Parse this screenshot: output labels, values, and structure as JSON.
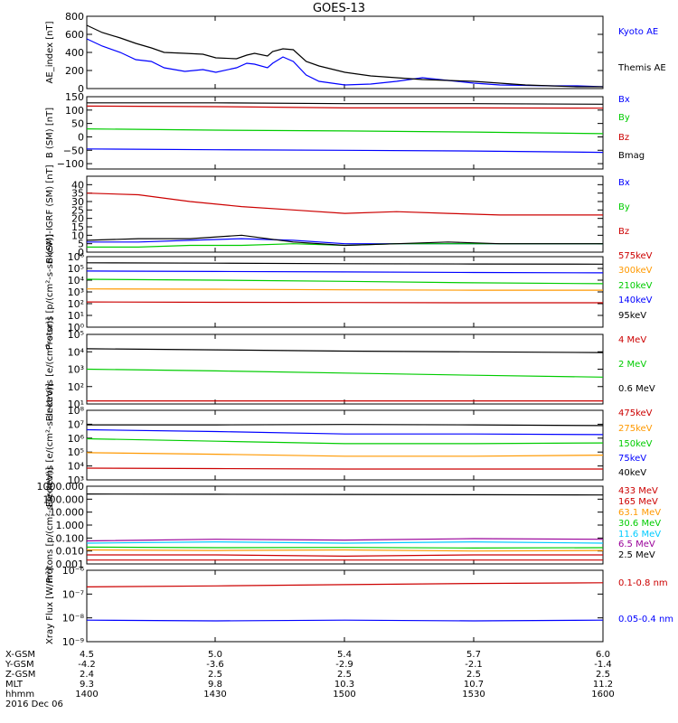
{
  "title": "GOES-13",
  "colors": {
    "blue": "#0000ff",
    "red": "#cc0000",
    "green": "#00cc00",
    "black": "#000000",
    "orange": "#ff9900",
    "cyan": "#00ccff",
    "purple": "#990099"
  },
  "footer": {
    "rows": [
      {
        "label": "X-GSM",
        "values": [
          "4.5",
          "5.0",
          "5.4",
          "5.7",
          "6.0"
        ]
      },
      {
        "label": "Y-GSM",
        "values": [
          "-4.2",
          "-3.6",
          "-2.9",
          "-2.1",
          "-1.4"
        ]
      },
      {
        "label": "Z-GSM",
        "values": [
          "2.4",
          "2.5",
          "2.5",
          "2.5",
          "2.5"
        ]
      },
      {
        "label": "MLT",
        "values": [
          "9.3",
          "9.8",
          "10.3",
          "10.7",
          "11.2"
        ]
      },
      {
        "label": "hhmm",
        "values": [
          "1400",
          "1430",
          "1500",
          "1530",
          "1600"
        ]
      }
    ],
    "date": "2016 Dec 06"
  },
  "chart_data": [
    {
      "type": "line",
      "ylabel": "AE_index [nT]",
      "scale": "linear",
      "ylim": [
        0,
        800
      ],
      "yticks": [
        "0",
        "200",
        "400",
        "600",
        "800"
      ],
      "xrange": [
        1400,
        1600
      ],
      "grid": false,
      "series": [
        {
          "name": "Kyoto AE",
          "color": "blue",
          "x": [
            1400,
            1406,
            1413,
            1419,
            1425,
            1430,
            1438,
            1445,
            1450,
            1458,
            1462,
            1465,
            1470,
            1472,
            1476,
            1480,
            1485,
            1490,
            1500,
            1510,
            1520,
            1530,
            1540,
            1550,
            1560,
            1570,
            1580,
            1590,
            1600
          ],
          "values": [
            550,
            470,
            400,
            320,
            300,
            230,
            190,
            210,
            180,
            230,
            280,
            270,
            230,
            280,
            350,
            300,
            150,
            80,
            40,
            50,
            80,
            120,
            90,
            60,
            40,
            35,
            30,
            30,
            20
          ]
        },
        {
          "name": "Themis AE",
          "color": "black",
          "x": [
            1400,
            1406,
            1413,
            1419,
            1425,
            1430,
            1438,
            1445,
            1450,
            1458,
            1462,
            1465,
            1470,
            1472,
            1476,
            1480,
            1485,
            1490,
            1500,
            1510,
            1520,
            1530,
            1540,
            1550,
            1560,
            1570,
            1580,
            1590,
            1600
          ],
          "values": [
            700,
            620,
            560,
            500,
            450,
            400,
            390,
            380,
            340,
            330,
            370,
            390,
            360,
            410,
            440,
            430,
            300,
            250,
            180,
            140,
            120,
            100,
            90,
            80,
            60,
            40,
            30,
            20,
            20
          ]
        }
      ]
    },
    {
      "type": "line",
      "ylabel": "B (SM) [nT]",
      "scale": "linear",
      "ylim": [
        -120,
        150
      ],
      "yticks": [
        "−100",
        "−50",
        "0",
        "50",
        "100",
        "150"
      ],
      "grid": false,
      "series": [
        {
          "name": "Bx",
          "color": "blue",
          "x": [
            1400,
            1450,
            1500,
            1550,
            1600
          ],
          "values": [
            -45,
            -48,
            -50,
            -53,
            -58
          ]
        },
        {
          "name": "By",
          "color": "green",
          "x": [
            1400,
            1450,
            1500,
            1550,
            1600
          ],
          "values": [
            30,
            25,
            22,
            18,
            12
          ]
        },
        {
          "name": "Bz",
          "color": "red",
          "x": [
            1400,
            1450,
            1500,
            1550,
            1600
          ],
          "values": [
            115,
            113,
            108,
            108,
            107
          ]
        },
        {
          "name": "Bmag",
          "color": "black",
          "x": [
            1400,
            1450,
            1500,
            1550,
            1600
          ],
          "values": [
            127,
            127,
            124,
            124,
            122
          ]
        }
      ]
    },
    {
      "type": "line",
      "ylabel": "B (SM)-IGRF (SM) [nT]",
      "scale": "linear",
      "ylim": [
        -5,
        40
      ],
      "yticks": [
        "0",
        "5",
        "10",
        "15",
        "20",
        "25",
        "30",
        "35",
        "40"
      ],
      "grid": false,
      "series": [
        {
          "name": "Bx",
          "color": "blue",
          "x": [
            1400,
            1420,
            1440,
            1460,
            1480,
            1500,
            1520,
            1540,
            1560,
            1580,
            1600
          ],
          "values": [
            1,
            1,
            2,
            3,
            2,
            0,
            0,
            0,
            0,
            0,
            0
          ]
        },
        {
          "name": "By",
          "color": "green",
          "x": [
            1400,
            1420,
            1440,
            1460,
            1480,
            1500,
            1520,
            1540,
            1560,
            1580,
            1600
          ],
          "values": [
            -2,
            -2,
            -1,
            -1,
            0,
            -1,
            0,
            0,
            0,
            0,
            0
          ]
        },
        {
          "name": "Bz",
          "color": "red",
          "x": [
            1400,
            1420,
            1440,
            1460,
            1480,
            1500,
            1520,
            1540,
            1560,
            1580,
            1600
          ],
          "values": [
            30,
            29,
            25,
            22,
            20,
            18,
            19,
            18,
            17,
            17,
            17
          ]
        },
        {
          "name": "",
          "color": "black",
          "x": [
            1400,
            1420,
            1440,
            1460,
            1480,
            1500,
            1520,
            1540,
            1560,
            1580,
            1600
          ],
          "values": [
            2,
            3,
            3,
            5,
            1,
            -1,
            0,
            1,
            0,
            0,
            0
          ]
        }
      ]
    },
    {
      "type": "line",
      "ylabel": "Protons [p/(cm²-s-sr-keV)]",
      "scale": "log",
      "ylim": [
        1,
        1000000
      ],
      "yticks": [
        "10⁰",
        "10¹",
        "10²",
        "10³",
        "10⁴",
        "10⁵",
        "10⁶"
      ],
      "grid": false,
      "series": [
        {
          "name": "575keV",
          "color": "red",
          "x": [
            1400,
            1450,
            1500,
            1550,
            1600
          ],
          "values": [
            140,
            130,
            125,
            120,
            120
          ]
        },
        {
          "name": "300keV",
          "color": "orange",
          "x": [
            1400,
            1450,
            1500,
            1550,
            1600
          ],
          "values": [
            1800,
            1700,
            1500,
            1400,
            1400
          ]
        },
        {
          "name": "210keV",
          "color": "green",
          "x": [
            1400,
            1450,
            1500,
            1550,
            1600
          ],
          "values": [
            12000,
            10000,
            8000,
            6000,
            5000
          ]
        },
        {
          "name": "140keV",
          "color": "blue",
          "x": [
            1400,
            1450,
            1500,
            1550,
            1600
          ],
          "values": [
            60000,
            55000,
            50000,
            45000,
            42000
          ]
        },
        {
          "name": "95keV",
          "color": "black",
          "x": [
            1400,
            1450,
            1500,
            1550,
            1600
          ],
          "values": [
            300000,
            280000,
            250000,
            240000,
            230000
          ]
        }
      ]
    },
    {
      "type": "line",
      "ylabel": "Electrons [e/(cm²-s-sr)]",
      "scale": "log",
      "ylim": [
        10,
        100000
      ],
      "yticks": [
        "10¹",
        "10²",
        "10³",
        "10⁴",
        "10⁵"
      ],
      "grid": false,
      "series": [
        {
          "name": "4 MeV",
          "color": "red",
          "x": [
            1400,
            1450,
            1500,
            1550,
            1600
          ],
          "values": [
            15,
            15,
            15,
            15,
            15
          ]
        },
        {
          "name": "2 MeV",
          "color": "green",
          "x": [
            1400,
            1450,
            1500,
            1550,
            1600
          ],
          "values": [
            1000,
            800,
            600,
            450,
            350
          ]
        },
        {
          "name": "0.6 MeV",
          "color": "black",
          "x": [
            1400,
            1450,
            1500,
            1550,
            1600
          ],
          "values": [
            15000,
            13000,
            11000,
            10000,
            9000
          ]
        }
      ]
    },
    {
      "type": "line",
      "ylabel": "Electrons [e/(cm²-s-sr-keV)]",
      "scale": "log",
      "ylim": [
        1000,
        100000000
      ],
      "yticks": [
        "10³",
        "10⁴",
        "10⁵",
        "10⁶",
        "10⁷",
        "10⁸"
      ],
      "grid": false,
      "series": [
        {
          "name": "475keV",
          "color": "red",
          "x": [
            1400,
            1450,
            1500,
            1550,
            1600
          ],
          "values": [
            7000,
            6500,
            6000,
            6000,
            6000
          ]
        },
        {
          "name": "275keV",
          "color": "orange",
          "x": [
            1400,
            1450,
            1500,
            1550,
            1600
          ],
          "values": [
            90000,
            70000,
            50000,
            50000,
            60000
          ]
        },
        {
          "name": "150keV",
          "color": "green",
          "x": [
            1400,
            1450,
            1500,
            1550,
            1600
          ],
          "values": [
            900000,
            600000,
            400000,
            400000,
            450000
          ]
        },
        {
          "name": "75keV",
          "color": "blue",
          "x": [
            1400,
            1450,
            1500,
            1550,
            1600
          ],
          "values": [
            4000000,
            3000000,
            2000000,
            2000000,
            1800000
          ]
        },
        {
          "name": "40keV",
          "color": "black",
          "x": [
            1400,
            1450,
            1500,
            1550,
            1600
          ],
          "values": [
            9000000,
            9000000,
            9500000,
            9000000,
            8000000
          ]
        }
      ]
    },
    {
      "type": "line",
      "ylabel": "Protons [p/(cm²-s-sr-keV)]",
      "scale": "log",
      "ylim": [
        0.001,
        1000
      ],
      "yticks": [
        "0.001",
        "0.010",
        "0.100",
        "1.000",
        "10.000",
        "100.000",
        "1000.000"
      ],
      "grid": false,
      "series": [
        {
          "name": "433 MeV",
          "color": "red",
          "x": [
            1400,
            1450,
            1500,
            1550,
            1600
          ],
          "values": [
            0.002,
            0.002,
            0.002,
            0.002,
            0.002
          ]
        },
        {
          "name": "165 MeV",
          "color": "red",
          "x": [
            1400,
            1450,
            1500,
            1550,
            1600
          ],
          "values": [
            0.005,
            0.005,
            0.004,
            0.005,
            0.005
          ]
        },
        {
          "name": "63.1 MeV",
          "color": "orange",
          "x": [
            1400,
            1450,
            1500,
            1550,
            1600
          ],
          "values": [
            0.012,
            0.011,
            0.012,
            0.01,
            0.011
          ]
        },
        {
          "name": "30.6 MeV",
          "color": "green",
          "x": [
            1400,
            1450,
            1500,
            1550,
            1600
          ],
          "values": [
            0.02,
            0.018,
            0.019,
            0.017,
            0.018
          ]
        },
        {
          "name": "11.6 MeV",
          "color": "cyan",
          "x": [
            1400,
            1450,
            1500,
            1550,
            1600
          ],
          "values": [
            0.04,
            0.05,
            0.04,
            0.05,
            0.04
          ]
        },
        {
          "name": "6.5 MeV",
          "color": "purple",
          "x": [
            1400,
            1450,
            1500,
            1550,
            1600
          ],
          "values": [
            0.06,
            0.08,
            0.07,
            0.09,
            0.08
          ]
        },
        {
          "name": "2.5 MeV",
          "color": "black",
          "x": [
            1400,
            1450,
            1500,
            1550,
            1600
          ],
          "values": [
            250,
            240,
            230,
            220,
            210
          ]
        }
      ]
    },
    {
      "type": "line",
      "ylabel": "Xray Flux [W/m²]",
      "scale": "log",
      "ylim": [
        1e-09,
        1e-06
      ],
      "yticks": [
        "10⁻⁹",
        "10⁻⁸",
        "10⁻⁷",
        "10⁻⁶"
      ],
      "grid": false,
      "series": [
        {
          "name": "0.1-0.8 nm",
          "color": "red",
          "x": [
            1400,
            1450,
            1500,
            1550,
            1600
          ],
          "values": [
            2e-07,
            2.2e-07,
            2.5e-07,
            2.8e-07,
            3e-07
          ]
        },
        {
          "name": "0.05-0.4 nm",
          "color": "blue",
          "x": [
            1400,
            1450,
            1500,
            1550,
            1600
          ],
          "values": [
            8e-09,
            7.5e-09,
            8e-09,
            7.5e-09,
            8e-09
          ]
        }
      ]
    }
  ]
}
